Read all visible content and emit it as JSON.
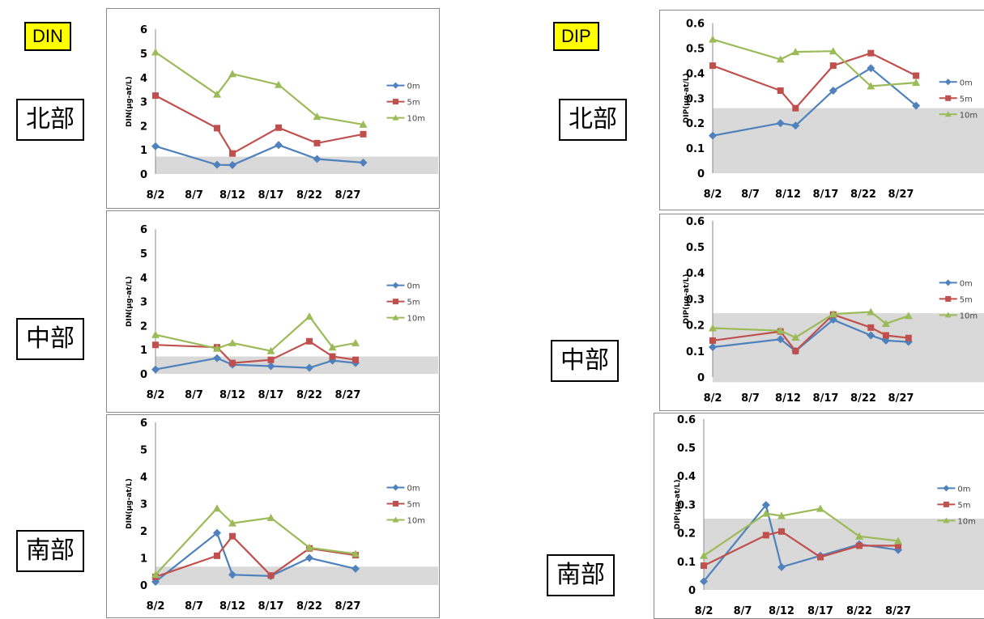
{
  "tags": {
    "din": "DIN",
    "dip": "DIP"
  },
  "regions": {
    "north": "北部",
    "central": "中部",
    "south": "南部"
  },
  "series_names": [
    "0m",
    "5m",
    "10m"
  ],
  "colors": {
    "0m": "#4f81bd",
    "5m": "#c0504d",
    "10m": "#9bbb59",
    "band": "#d9d9d9"
  },
  "chart_data": [
    {
      "id": "din-north",
      "type": "line",
      "ylabel": "DIN(μg-at/L)",
      "xticks": [
        "8/2",
        "8/7",
        "8/12",
        "8/17",
        "8/22",
        "8/27"
      ],
      "xlim": [
        "8/2",
        "8/31"
      ],
      "ylim": [
        0,
        6
      ],
      "yticks": [
        "0",
        "1",
        "2",
        "3",
        "4",
        "5",
        "6"
      ],
      "band": [
        0,
        0.72
      ],
      "grid": false,
      "legend": "right",
      "series": [
        {
          "name": "0m",
          "points": [
            [
              "8/2",
              1.15
            ],
            [
              "8/10",
              0.38
            ],
            [
              "8/12",
              0.37
            ],
            [
              "8/18",
              1.2
            ],
            [
              "8/23",
              0.62
            ],
            [
              "8/29",
              0.47
            ]
          ]
        },
        {
          "name": "5m",
          "points": [
            [
              "8/2",
              3.25
            ],
            [
              "8/10",
              1.9
            ],
            [
              "8/12",
              0.85
            ],
            [
              "8/18",
              1.92
            ],
            [
              "8/23",
              1.28
            ],
            [
              "8/29",
              1.65
            ]
          ]
        },
        {
          "name": "10m",
          "points": [
            [
              "8/2",
              5.05
            ],
            [
              "8/10",
              3.3
            ],
            [
              "8/12",
              4.15
            ],
            [
              "8/18",
              3.7
            ],
            [
              "8/23",
              2.38
            ],
            [
              "8/29",
              2.05
            ]
          ]
        }
      ]
    },
    {
      "id": "din-central",
      "type": "line",
      "ylabel": "DIN(μg-at/L)",
      "xticks": [
        "8/2",
        "8/7",
        "8/12",
        "8/17",
        "8/22",
        "8/27"
      ],
      "xlim": [
        "8/2",
        "8/31"
      ],
      "ylim": [
        0,
        6
      ],
      "yticks": [
        "0",
        "1",
        "2",
        "3",
        "4",
        "5",
        "6"
      ],
      "band": [
        0,
        0.72
      ],
      "grid": false,
      "legend": "right",
      "series": [
        {
          "name": "0m",
          "points": [
            [
              "8/2",
              0.18
            ],
            [
              "8/10",
              0.65
            ],
            [
              "8/12",
              0.38
            ],
            [
              "8/17",
              0.32
            ],
            [
              "8/22",
              0.25
            ],
            [
              "8/25",
              0.55
            ],
            [
              "8/28",
              0.45
            ]
          ]
        },
        {
          "name": "5m",
          "points": [
            [
              "8/2",
              1.2
            ],
            [
              "8/10",
              1.1
            ],
            [
              "8/12",
              0.45
            ],
            [
              "8/17",
              0.58
            ],
            [
              "8/22",
              1.35
            ],
            [
              "8/25",
              0.72
            ],
            [
              "8/28",
              0.58
            ]
          ]
        },
        {
          "name": "10m",
          "points": [
            [
              "8/2",
              1.62
            ],
            [
              "8/10",
              1.05
            ],
            [
              "8/12",
              1.28
            ],
            [
              "8/17",
              0.95
            ],
            [
              "8/22",
              2.38
            ],
            [
              "8/25",
              1.1
            ],
            [
              "8/28",
              1.28
            ]
          ]
        }
      ]
    },
    {
      "id": "din-south",
      "type": "line",
      "ylabel": "DIN(μg-at/L)",
      "xticks": [
        "8/2",
        "8/7",
        "8/12",
        "8/17",
        "8/22",
        "8/27"
      ],
      "xlim": [
        "8/2",
        "8/31"
      ],
      "ylim": [
        0,
        6
      ],
      "yticks": [
        "0",
        "1",
        "2",
        "3",
        "4",
        "5",
        "6"
      ],
      "band": [
        0,
        0.68
      ],
      "grid": false,
      "legend": "right",
      "series": [
        {
          "name": "0m",
          "points": [
            [
              "8/2",
              0.12
            ],
            [
              "8/10",
              1.92
            ],
            [
              "8/12",
              0.38
            ],
            [
              "8/17",
              0.33
            ],
            [
              "8/22",
              1.0
            ],
            [
              "8/28",
              0.6
            ]
          ]
        },
        {
          "name": "5m",
          "points": [
            [
              "8/2",
              0.3
            ],
            [
              "8/10",
              1.08
            ],
            [
              "8/12",
              1.8
            ],
            [
              "8/17",
              0.35
            ],
            [
              "8/22",
              1.35
            ],
            [
              "8/28",
              1.1
            ]
          ]
        },
        {
          "name": "10m",
          "points": [
            [
              "8/2",
              0.38
            ],
            [
              "8/10",
              2.83
            ],
            [
              "8/12",
              2.28
            ],
            [
              "8/17",
              2.48
            ],
            [
              "8/22",
              1.38
            ],
            [
              "8/28",
              1.15
            ]
          ]
        }
      ]
    },
    {
      "id": "dip-north",
      "type": "line",
      "ylabel": "DIP(μg-at/L)",
      "xticks": [
        "8/2",
        "8/7",
        "8/12",
        "8/17",
        "8/22",
        "8/27"
      ],
      "xlim": [
        "8/2",
        "8/31"
      ],
      "ylim": [
        0,
        0.6
      ],
      "yticks": [
        "0",
        "0.1",
        "0.2",
        "0.3",
        "0.4",
        "0.5",
        "0.6"
      ],
      "band": [
        0,
        0.26
      ],
      "grid": false,
      "legend": "right",
      "series": [
        {
          "name": "0m",
          "points": [
            [
              "8/2",
              0.15
            ],
            [
              "8/11",
              0.2
            ],
            [
              "8/13",
              0.19
            ],
            [
              "8/18",
              0.33
            ],
            [
              "8/23",
              0.42
            ],
            [
              "8/29",
              0.27
            ]
          ]
        },
        {
          "name": "5m",
          "points": [
            [
              "8/2",
              0.43
            ],
            [
              "8/11",
              0.33
            ],
            [
              "8/13",
              0.26
            ],
            [
              "8/18",
              0.43
            ],
            [
              "8/23",
              0.48
            ],
            [
              "8/29",
              0.39
            ]
          ]
        },
        {
          "name": "10m",
          "points": [
            [
              "8/2",
              0.535
            ],
            [
              "8/11",
              0.455
            ],
            [
              "8/13",
              0.485
            ],
            [
              "8/18",
              0.488
            ],
            [
              "8/23",
              0.348
            ],
            [
              "8/29",
              0.362
            ]
          ]
        }
      ]
    },
    {
      "id": "dip-central",
      "type": "line",
      "ylabel": "DIP(μg-at/L)",
      "xticks": [
        "8/2",
        "8/7",
        "8/12",
        "8/17",
        "8/22",
        "8/27"
      ],
      "xlim": [
        "8/2",
        "8/31"
      ],
      "ylim": [
        0,
        0.6
      ],
      "yticks": [
        "0",
        "0.1",
        "0.2",
        "0.3",
        "0.4",
        "0.5",
        "0.6"
      ],
      "band": [
        -0.02,
        0.245
      ],
      "grid": false,
      "legend": "right",
      "series": [
        {
          "name": "0m",
          "points": [
            [
              "8/2",
              0.115
            ],
            [
              "8/11",
              0.145
            ],
            [
              "8/13",
              0.1
            ],
            [
              "8/18",
              0.22
            ],
            [
              "8/23",
              0.16
            ],
            [
              "8/25",
              0.14
            ],
            [
              "8/28",
              0.135
            ]
          ]
        },
        {
          "name": "5m",
          "points": [
            [
              "8/2",
              0.14
            ],
            [
              "8/11",
              0.175
            ],
            [
              "8/13",
              0.1
            ],
            [
              "8/18",
              0.24
            ],
            [
              "8/23",
              0.19
            ],
            [
              "8/25",
              0.16
            ],
            [
              "8/28",
              0.15
            ]
          ]
        },
        {
          "name": "10m",
          "points": [
            [
              "8/2",
              0.188
            ],
            [
              "8/11",
              0.178
            ],
            [
              "8/13",
              0.152
            ],
            [
              "8/18",
              0.242
            ],
            [
              "8/23",
              0.25
            ],
            [
              "8/25",
              0.205
            ],
            [
              "8/28",
              0.235
            ]
          ]
        }
      ]
    },
    {
      "id": "dip-south",
      "type": "line",
      "ylabel": "DIP(μg-at/L)",
      "xticks": [
        "8/2",
        "8/7",
        "8/12",
        "8/17",
        "8/22",
        "8/27"
      ],
      "xlim": [
        "8/2",
        "8/31"
      ],
      "ylim": [
        0,
        0.6
      ],
      "yticks": [
        "0",
        "0.1",
        "0.2",
        "0.3",
        "0.4",
        "0.5",
        "0.6"
      ],
      "band": [
        0,
        0.25
      ],
      "grid": false,
      "legend": "right",
      "series": [
        {
          "name": "0m",
          "points": [
            [
              "8/2",
              0.03
            ],
            [
              "8/10",
              0.298
            ],
            [
              "8/12",
              0.08
            ],
            [
              "8/17",
              0.12
            ],
            [
              "8/22",
              0.16
            ],
            [
              "8/27",
              0.14
            ]
          ]
        },
        {
          "name": "5m",
          "points": [
            [
              "8/2",
              0.085
            ],
            [
              "8/10",
              0.192
            ],
            [
              "8/12",
              0.205
            ],
            [
              "8/17",
              0.115
            ],
            [
              "8/22",
              0.155
            ],
            [
              "8/27",
              0.155
            ]
          ]
        },
        {
          "name": "10m",
          "points": [
            [
              "8/2",
              0.12
            ],
            [
              "8/10",
              0.268
            ],
            [
              "8/12",
              0.26
            ],
            [
              "8/17",
              0.285
            ],
            [
              "8/22",
              0.188
            ],
            [
              "8/27",
              0.172
            ]
          ]
        }
      ]
    }
  ]
}
